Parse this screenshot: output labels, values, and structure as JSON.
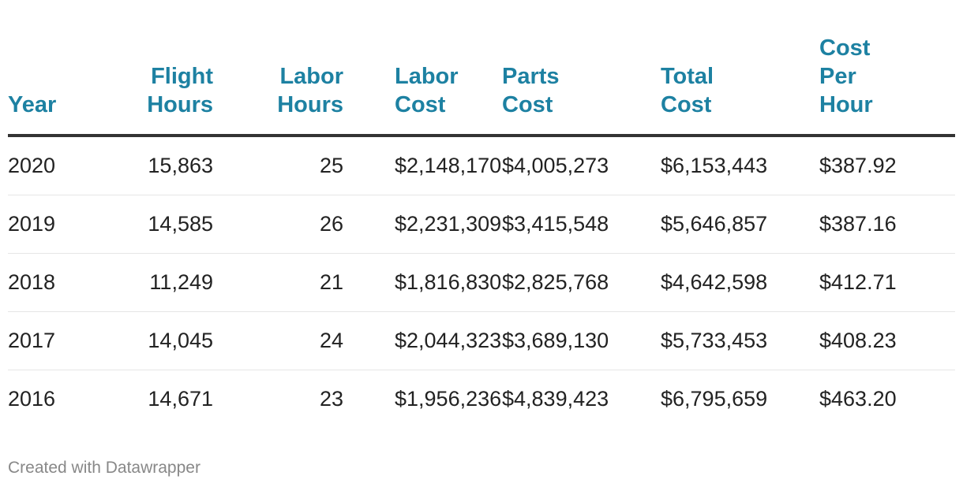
{
  "chart_data": {
    "type": "table",
    "columns": [
      "Year",
      "Flight\nHours",
      "Labor\nHours",
      "Labor\nCost",
      "Parts\nCost",
      "Total\nCost",
      "Cost\nPer\nHour"
    ],
    "rows": [
      [
        "2020",
        "15,863",
        "25",
        "$2,148,170",
        "$4,005,273",
        "$6,153,443",
        "$387.92"
      ],
      [
        "2019",
        "14,585",
        "26",
        "$2,231,309",
        "$3,415,548",
        "$5,646,857",
        "$387.16"
      ],
      [
        "2018",
        "11,249",
        "21",
        "$1,816,830",
        "$2,825,768",
        "$4,642,598",
        "$412.71"
      ],
      [
        "2017",
        "14,045",
        "24",
        "$2,044,323",
        "$3,689,130",
        "$5,733,453",
        "$408.23"
      ],
      [
        "2016",
        "14,671",
        "23",
        "$1,956,236",
        "$4,839,423",
        "$6,795,659",
        "$463.20"
      ]
    ],
    "header_color": "#1d81a2",
    "footer": "Created with Datawrapper"
  }
}
